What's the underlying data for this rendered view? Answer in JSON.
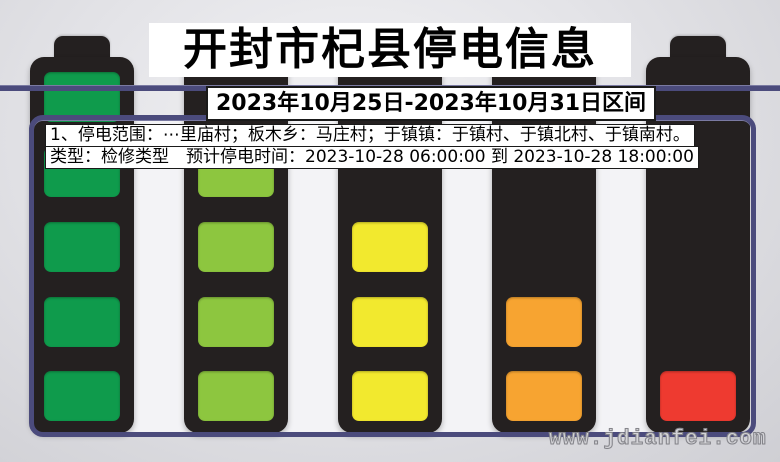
{
  "page": {
    "title": "开封市杞县停电信息",
    "date_range": "2023年10月25日-2023年10月31日区间",
    "outage_lines": [
      "1、停电范围：⋯里庙村；板木乡：马庄村；于镇镇：于镇村、于镇北村、于镇南村。",
      "类型：检修类型　预计停电时间：2023-10-28 06:00:00 到 2023-10-28 18:00:00"
    ],
    "watermark": "www.jdianfei.com"
  },
  "colors": {
    "accent_line": "#4b4b7c",
    "battery_body": "#242020",
    "panel_fill": "#f3f3f6",
    "highlight_bg": "#ffffff",
    "text": "#000000"
  },
  "chart_data": {
    "type": "bar",
    "title": "开封市杞县停电信息",
    "subtitle": "2023年10月25日-2023年10月31日区间",
    "categories": [
      "battery-1",
      "battery-2",
      "battery-3",
      "battery-4",
      "battery-5"
    ],
    "values": [
      5,
      4,
      3,
      2,
      1
    ],
    "max_value": 5,
    "bar_colors": [
      "#0f9b4c",
      "#8dc63f",
      "#f2e92e",
      "#f7a431",
      "#ee3a30"
    ],
    "ylabel": "",
    "xlabel": "",
    "legend": "none",
    "grid": false,
    "note": "battery-level gauges, bars fill from bottom"
  }
}
